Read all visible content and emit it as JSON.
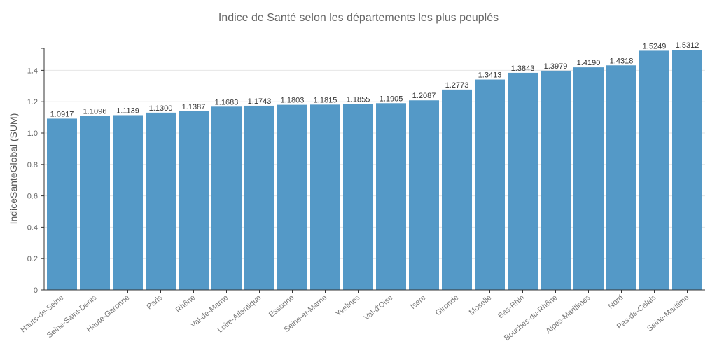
{
  "chart_data": {
    "type": "bar",
    "title": "Indice de Santé selon les départements les plus peuplés",
    "xlabel": "",
    "ylabel": "IndiceSanteGlobal (SUM)",
    "ylim": [
      0,
      1.5312
    ],
    "yticks": [
      0,
      0.2,
      0.4,
      0.6,
      0.8,
      1.0,
      1.2,
      1.4
    ],
    "ytick_labels": [
      "0",
      "0.2",
      "0.4",
      "0.6",
      "0.8",
      "1.0",
      "1.2",
      "1.4"
    ],
    "grid": true,
    "bar_color": "#5499c7",
    "categories": [
      "Hauts-de-Seine",
      "Seine-Saint-Denis",
      "Haute-Garonne",
      "Paris",
      "Rhône",
      "Val-de-Marne",
      "Loire-Atlantique",
      "Essonne",
      "Seine-et-Marne",
      "Yvelines",
      "Val-d'Oise",
      "Isère",
      "Gironde",
      "Moselle",
      "Bas-Rhin",
      "Bouches-du-Rhône",
      "Alpes-Maritimes",
      "Nord",
      "Pas-de-Calais",
      "Seine-Maritime"
    ],
    "values": [
      1.0917,
      1.1096,
      1.1139,
      1.13,
      1.1387,
      1.1683,
      1.1743,
      1.1803,
      1.1815,
      1.1855,
      1.1905,
      1.2087,
      1.2773,
      1.3413,
      1.3843,
      1.3979,
      1.419,
      1.4318,
      1.5249,
      1.5312
    ],
    "value_labels": [
      "1.0917",
      "1.1096",
      "1.1139",
      "1.1300",
      "1.1387",
      "1.1683",
      "1.1743",
      "1.1803",
      "1.1815",
      "1.1855",
      "1.1905",
      "1.2087",
      "1.2773",
      "1.3413",
      "1.3843",
      "1.3979",
      "1.4190",
      "1.4318",
      "1.5249",
      "1.5312"
    ]
  }
}
